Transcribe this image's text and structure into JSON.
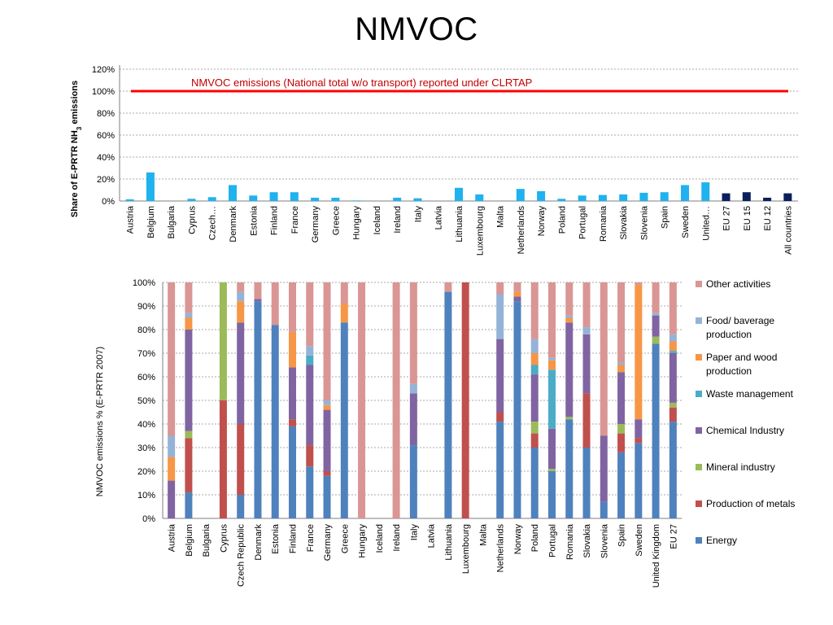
{
  "slide": {
    "title": "NMVOC"
  },
  "chart_data": [
    {
      "type": "bar",
      "title": "",
      "ylabel_main": "Share of E-PRTR NH",
      "ylabel_sub": "3",
      "ylabel_rest": " emissions",
      "yticks": [
        "0%",
        "20%",
        "40%",
        "60%",
        "80%",
        "100%",
        "120%"
      ],
      "ylim": [
        0,
        120
      ],
      "grid": true,
      "reference_line": {
        "value": 100,
        "label": "NMVOC emissions (National total w/o transport) reported under CLRTAP",
        "color": "#ff0000"
      },
      "colors": {
        "country": "#1fb2ef",
        "aggregate": "#0a1f5c",
        "label": "#c00000"
      },
      "categories": [
        "Austria",
        "Belgium",
        "Bulgaria",
        "Cyprus",
        "Czech…",
        "Denmark",
        "Estonia",
        "Finland",
        "France",
        "Germany",
        "Greece",
        "Hungary",
        "Iceland",
        "Ireland",
        "Italy",
        "Latvia",
        "Lithuania",
        "Luxembourg",
        "Malta",
        "Netherlands",
        "Norway",
        "Poland",
        "Portugal",
        "Romania",
        "Slovakia",
        "Slovenia",
        "Spain",
        "Sweden",
        "United…",
        "EU 27",
        "EU 15",
        "EU 12",
        "All countries"
      ],
      "values": [
        1.5,
        26,
        0,
        2,
        3.5,
        14.5,
        5,
        8,
        8,
        3,
        3,
        0.5,
        0,
        3,
        2.5,
        0,
        12,
        6,
        0,
        11,
        9,
        2,
        5,
        5.5,
        6,
        7.5,
        8,
        14.5,
        17,
        7,
        8,
        3,
        7
      ],
      "aggregate_categories": [
        "EU 27",
        "EU 15",
        "EU 12",
        "All countries"
      ]
    },
    {
      "type": "bar",
      "stacked": true,
      "title": "",
      "ylabel": "NMVOC emissions % (E-PRTR 2007)",
      "yticks": [
        "0%",
        "10%",
        "20%",
        "30%",
        "40%",
        "50%",
        "60%",
        "70%",
        "80%",
        "90%",
        "100%"
      ],
      "ylim": [
        0,
        100
      ],
      "grid": true,
      "legend_position": "right",
      "categories": [
        "Austria",
        "Belgium",
        "Bulgaria",
        "Cyprus",
        "Czech Republic",
        "Denmark",
        "Estonia",
        "Finland",
        "France",
        "Germany",
        "Greece",
        "Hungary",
        "Iceland",
        "Ireland",
        "Italy",
        "Latvia",
        "Lithuania",
        "Luxembourg",
        "Malta",
        "Netherlands",
        "Norway",
        "Poland",
        "Portugal",
        "Romania",
        "Slovakia",
        "Slovenia",
        "Spain",
        "Sweden",
        "United Kingdom",
        "EU 27"
      ],
      "series": [
        {
          "name": "Energy",
          "color": "#4f81bd",
          "values": [
            0,
            11,
            0,
            0,
            10,
            92,
            82,
            39,
            22,
            18,
            83,
            0,
            0,
            0,
            31,
            0,
            96,
            0,
            0,
            41,
            92,
            30,
            20,
            42,
            30,
            7,
            28,
            32,
            74,
            41
          ]
        },
        {
          "name": "Production of metals",
          "color": "#c0504d",
          "values": [
            0,
            23,
            0,
            50,
            30,
            0,
            0,
            3,
            9,
            2,
            0,
            0,
            0,
            0,
            0,
            0,
            0,
            100,
            0,
            4,
            0,
            6,
            0,
            0,
            23,
            0,
            8,
            2,
            0,
            6
          ]
        },
        {
          "name": "Mineral industry",
          "color": "#9bbb59",
          "values": [
            0,
            3,
            0,
            50,
            0,
            0,
            0,
            0,
            0,
            0,
            0,
            0,
            0,
            0,
            0,
            0,
            0,
            0,
            0,
            0,
            0,
            5,
            1,
            1,
            0,
            0,
            4,
            0,
            3,
            2
          ]
        },
        {
          "name": "Chemical Industry",
          "color": "#8064a2",
          "values": [
            16,
            43,
            0,
            0,
            43,
            1,
            0,
            22,
            34,
            26,
            0,
            0,
            0,
            0,
            22,
            0,
            0,
            0,
            0,
            31,
            2,
            20,
            17,
            40,
            25,
            28,
            22,
            8,
            9,
            21
          ]
        },
        {
          "name": "Waste management",
          "color": "#4bacc6",
          "values": [
            0,
            0,
            0,
            0,
            0,
            0,
            0,
            0,
            4,
            0,
            0,
            0,
            0,
            0,
            0,
            0,
            0,
            0,
            0,
            0,
            0,
            4,
            25,
            0,
            0,
            0,
            0,
            0,
            0,
            1
          ]
        },
        {
          "name": "Paper and wood production",
          "color": "#f79646",
          "values": [
            10,
            5,
            0,
            0,
            9,
            0,
            0,
            15,
            0,
            2,
            8,
            0,
            0,
            0,
            0,
            0,
            0,
            0,
            0,
            0,
            2,
            5,
            4,
            2,
            0,
            0,
            3,
            57,
            0,
            4
          ]
        },
        {
          "name": "Food/ baverage production",
          "color": "#95b3d7",
          "values": [
            9,
            2,
            0,
            0,
            4,
            0,
            0,
            0,
            4,
            2,
            0,
            0,
            0,
            0,
            4,
            0,
            0,
            0,
            0,
            19,
            0,
            6,
            1,
            1,
            3,
            0,
            1,
            0,
            1,
            3
          ]
        },
        {
          "name": "Other activities",
          "color": "#d99694",
          "values": [
            65,
            13,
            0,
            0,
            4,
            7,
            18,
            21,
            27,
            50,
            9,
            100,
            0,
            100,
            43,
            0,
            4,
            0,
            0,
            5,
            4,
            24,
            32,
            14,
            19,
            65,
            34,
            1,
            13,
            22
          ]
        }
      ],
      "legend_order": [
        "Other activities",
        "Food/ baverage production",
        "Paper and wood production",
        "Waste management",
        "Chemical Industry",
        "Mineral industry",
        "Production of metals",
        "Energy"
      ]
    }
  ]
}
